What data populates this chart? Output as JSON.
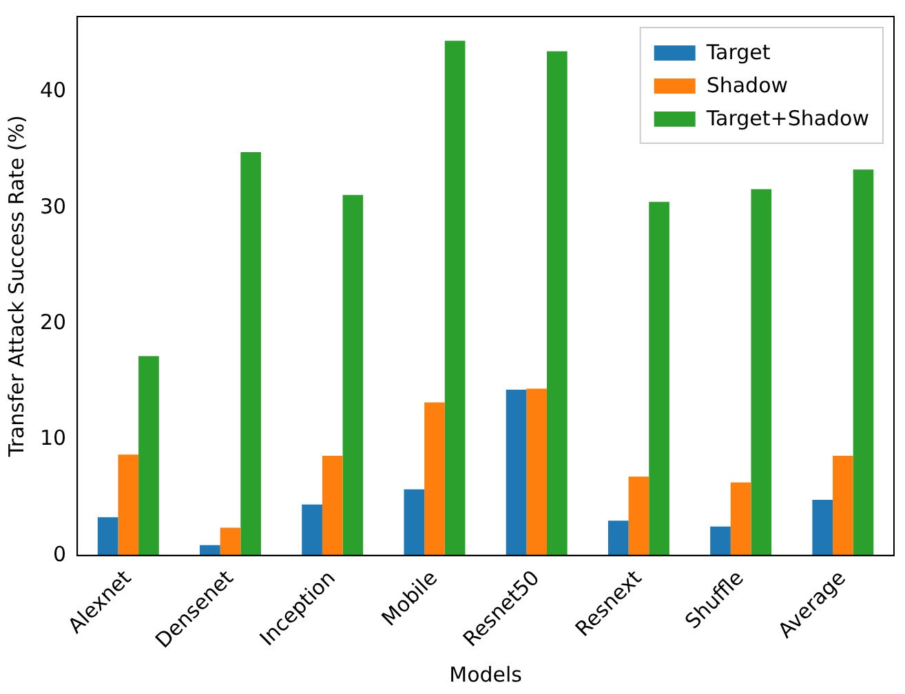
{
  "chart_data": {
    "type": "bar",
    "xlabel": "Models",
    "ylabel": "Transfer Attack Success Rate (%)",
    "categories": [
      "Alexnet",
      "Densenet",
      "Inception",
      "Mobile",
      "Resnet50",
      "Resnext",
      "Shuffle",
      "Average"
    ],
    "series": [
      {
        "name": "Target",
        "color": "#1f77b4",
        "values": [
          3.3,
          0.9,
          4.4,
          5.7,
          14.3,
          3.0,
          2.5,
          4.8
        ]
      },
      {
        "name": "Shadow",
        "color": "#ff7f0e",
        "values": [
          8.7,
          2.4,
          8.6,
          13.2,
          14.4,
          6.8,
          6.3,
          8.6
        ]
      },
      {
        "name": "Target+Shadow",
        "color": "#2ca02c",
        "values": [
          17.2,
          34.8,
          31.1,
          44.4,
          43.5,
          30.5,
          31.6,
          33.3
        ]
      }
    ],
    "ylim": [
      0,
      46.5
    ],
    "yticks": [
      0,
      10,
      20,
      30,
      40
    ],
    "grid": false,
    "legend": "top right"
  }
}
